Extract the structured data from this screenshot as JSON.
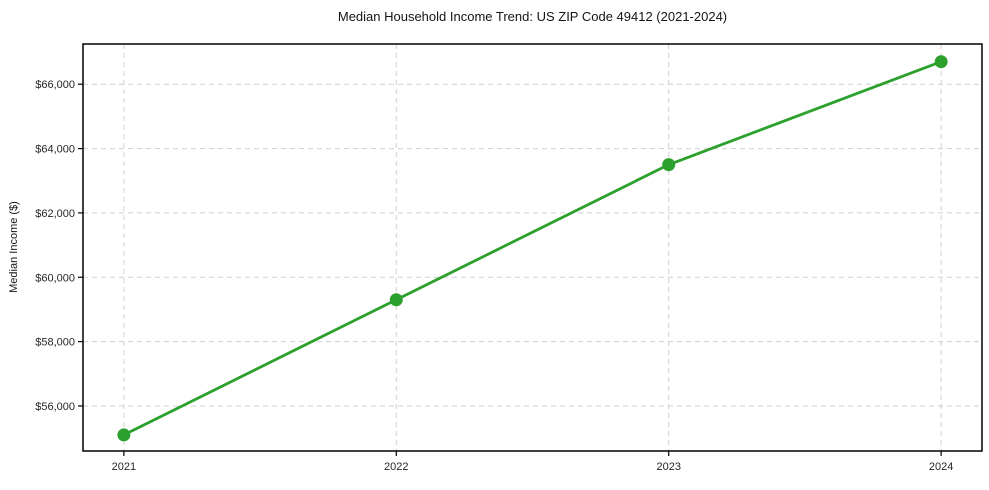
{
  "chart_data": {
    "type": "line",
    "title": "Median Household Income Trend: US ZIP Code 49412 (2021-2024)",
    "xlabel": "",
    "ylabel": "Median Income ($)",
    "x": [
      2021,
      2022,
      2023,
      2024
    ],
    "xtick_labels": [
      "2021",
      "2022",
      "2023",
      "2024"
    ],
    "series": [
      {
        "values": [
          55100,
          59300,
          63500,
          66700
        ],
        "color": "#2ca02c",
        "marker": "circle"
      }
    ],
    "xlim": [
      2020.85,
      2024.15
    ],
    "ylim": [
      54600,
      67250
    ],
    "yticks": [
      56000,
      58000,
      60000,
      62000,
      64000,
      66000
    ],
    "ytick_labels": [
      "$56,000",
      "$58,000",
      "$60,000",
      "$62,000",
      "$64,000",
      "$66,000"
    ],
    "grid": true,
    "grid_color": "#cfcfcf",
    "spine_color": "#000000",
    "background": "#ffffff",
    "legend": null
  }
}
